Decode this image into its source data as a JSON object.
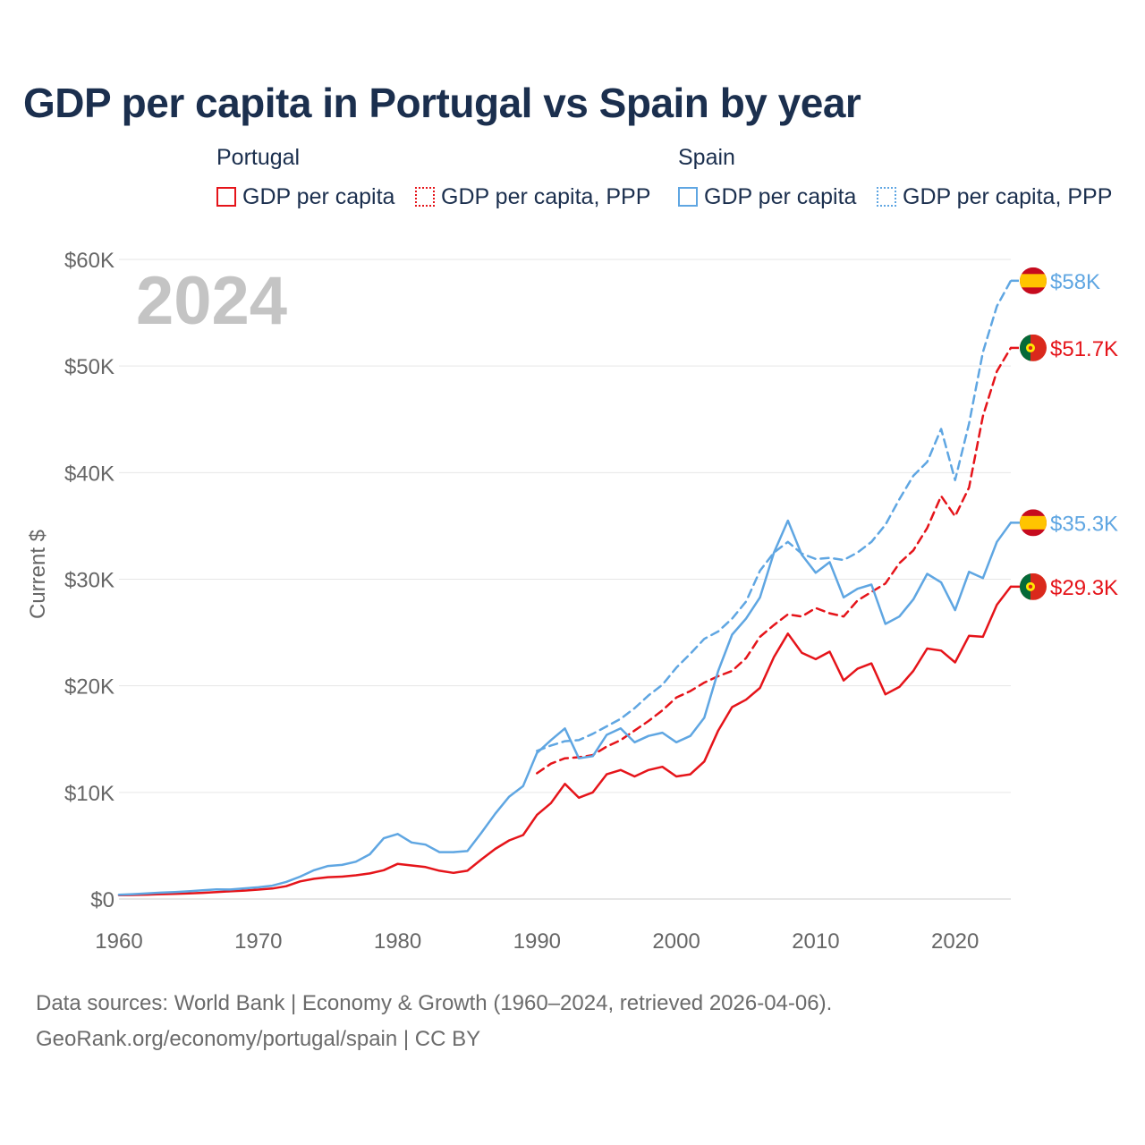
{
  "title": "GDP per capita in Portugal vs Spain by year",
  "legend": {
    "portugal": {
      "label": "Portugal",
      "solid": "GDP per capita",
      "dashed": "GDP per capita, PPP"
    },
    "spain": {
      "label": "Spain",
      "solid": "GDP per capita",
      "dashed": "GDP per capita, PPP"
    }
  },
  "colors": {
    "portugal": "#e5141a",
    "spain": "#5fa6e2",
    "grid": "#e6e6e6",
    "year_watermark": "#c4c4c4",
    "axis_text": "#666666"
  },
  "footer": {
    "line1": "Data sources: World Bank | Economy & Growth (1960–2024, retrieved 2026-04-06).",
    "line2": "GeoRank.org/economy/portugal/spain | CC BY"
  },
  "chart_data": {
    "type": "line",
    "title": "GDP per capita in Portugal vs Spain by year",
    "year_label": "2024",
    "ylabel": "Current $",
    "xlabel": "",
    "xlim": [
      1960,
      2024
    ],
    "ylim": [
      0,
      60000
    ],
    "x_ticks": [
      1960,
      1970,
      1980,
      1990,
      2000,
      2010,
      2020
    ],
    "x_tick_labels": [
      "1960",
      "1970",
      "1980",
      "1990",
      "2000",
      "2010",
      "2020"
    ],
    "y_ticks": [
      0,
      10000,
      20000,
      30000,
      40000,
      50000,
      60000
    ],
    "y_tick_labels": [
      "$0",
      "$10K",
      "$20K",
      "$30K",
      "$40K",
      "$50K",
      "$60K"
    ],
    "grid": true,
    "series": [
      {
        "name": "Portugal — GDP per capita",
        "country": "portugal",
        "style": "solid",
        "end_label": "$29.3K",
        "start": 1960,
        "values": [
          360,
          380,
          410,
          450,
          490,
          530,
          580,
          650,
          720,
          790,
          880,
          980,
          1200,
          1650,
          1900,
          2050,
          2100,
          2220,
          2400,
          2700,
          3300,
          3150,
          3000,
          2650,
          2450,
          2650,
          3700,
          4700,
          5500,
          6000,
          7900,
          9000,
          10800,
          9500,
          10000,
          11700,
          12100,
          11500,
          12100,
          12400,
          11500,
          11700,
          12900,
          15800,
          18000,
          18700,
          19800,
          22700,
          24900,
          23100,
          22500,
          23200,
          20500,
          21600,
          22100,
          19200,
          19900,
          21400,
          23500,
          23300,
          22200,
          24700,
          24600,
          27600,
          29300
        ]
      },
      {
        "name": "Portugal — GDP per capita, PPP",
        "country": "portugal",
        "style": "dashed",
        "end_label": "$51.7K",
        "start": 1990,
        "values": [
          11800,
          12700,
          13200,
          13300,
          13500,
          14300,
          14900,
          15800,
          16700,
          17700,
          18900,
          19500,
          20300,
          20900,
          21400,
          22600,
          24600,
          25700,
          26700,
          26500,
          27300,
          26800,
          26500,
          28000,
          28800,
          29600,
          31500,
          32700,
          34800,
          37800,
          35900,
          38600,
          45300,
          49500,
          51700
        ]
      },
      {
        "name": "Spain — GDP per capita",
        "country": "spain",
        "style": "solid",
        "end_label": "$35.3K",
        "start": 1960,
        "values": [
          400,
          450,
          520,
          600,
          650,
          720,
          820,
          900,
          890,
          1000,
          1100,
          1250,
          1600,
          2100,
          2700,
          3100,
          3200,
          3500,
          4200,
          5700,
          6100,
          5300,
          5100,
          4400,
          4400,
          4500,
          6200,
          8000,
          9600,
          10600,
          13700,
          14900,
          16000,
          13200,
          13400,
          15400,
          16000,
          14700,
          15300,
          15600,
          14700,
          15300,
          17000,
          21400,
          24800,
          26300,
          28300,
          32500,
          35500,
          32300,
          30600,
          31600,
          28300,
          29100,
          29500,
          25800,
          26500,
          28100,
          30500,
          29700,
          27100,
          30700,
          30100,
          33500,
          35300
        ]
      },
      {
        "name": "Spain — GDP per capita, PPP",
        "country": "spain",
        "style": "dashed",
        "end_label": "$58K",
        "start": 1990,
        "values": [
          13900,
          14400,
          14800,
          14900,
          15500,
          16200,
          16900,
          17900,
          19100,
          20100,
          21700,
          23000,
          24400,
          25100,
          26300,
          27900,
          30800,
          32500,
          33500,
          32400,
          31900,
          32000,
          31800,
          32500,
          33500,
          35100,
          37500,
          39700,
          41000,
          44100,
          39300,
          44600,
          51300,
          55600,
          58000
        ]
      }
    ]
  }
}
